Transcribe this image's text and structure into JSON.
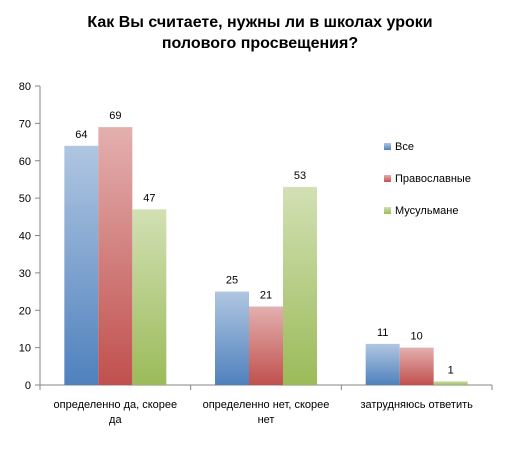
{
  "chart_data": {
    "type": "bar",
    "title_lines": [
      "Как Вы считаете, нужны ли в школах уроки",
      "полового просвещения?"
    ],
    "categories": [
      [
        "определенно да, скорее",
        "да"
      ],
      [
        "определенно нет, скорее",
        "нет"
      ],
      [
        "затрудняюсь ответить"
      ]
    ],
    "series": [
      {
        "name": "Все",
        "values": [
          64,
          25,
          11
        ],
        "color": "#4f81bd"
      },
      {
        "name": "Православные",
        "values": [
          69,
          21,
          10
        ],
        "color": "#c0504d"
      },
      {
        "name": "Мусульмане",
        "values": [
          47,
          53,
          1
        ],
        "color": "#9bbb59"
      }
    ],
    "ylim": [
      0,
      80
    ],
    "yticks": [
      0,
      10,
      20,
      30,
      40,
      50,
      60,
      70,
      80
    ],
    "grid": false,
    "legend": "right"
  }
}
